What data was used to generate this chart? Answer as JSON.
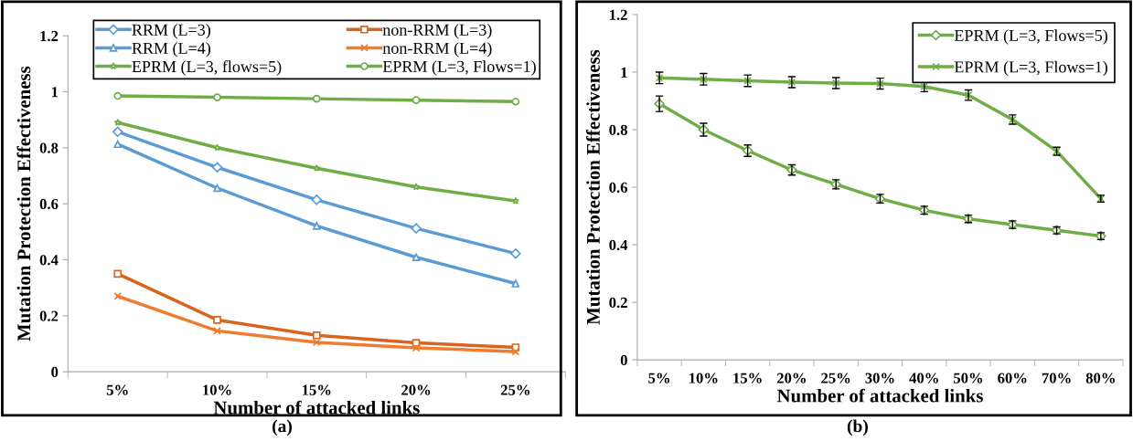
{
  "chart_data": [
    {
      "type": "line",
      "xlabel": "Number of attacked links",
      "ylabel": "Mutation Protection Effectiveness",
      "annotations": [
        "(a)"
      ],
      "categories": [
        "5%",
        "10%",
        "15%",
        "20%",
        "25%"
      ],
      "series": [
        {
          "name": "RRM (L=3)",
          "color": "#5b9bd5",
          "marker": "diamond",
          "values": [
            0.857,
            0.73,
            0.614,
            0.512,
            0.422
          ]
        },
        {
          "name": "non-RRM (L=3)",
          "color": "#d9641e",
          "marker": "square",
          "values": [
            0.35,
            0.185,
            0.13,
            0.103,
            0.087
          ]
        },
        {
          "name": "RRM (L=4)",
          "color": "#5b9bd5",
          "marker": "triangle",
          "values": [
            0.813,
            0.656,
            0.521,
            0.409,
            0.315
          ]
        },
        {
          "name": "non-RRM (L=4)",
          "color": "#ed7d31",
          "marker": "cross",
          "values": [
            0.27,
            0.146,
            0.105,
            0.085,
            0.072
          ]
        },
        {
          "name": "EPRM (L=3, flows=5)",
          "color": "#70ad47",
          "marker": "star",
          "values": [
            0.89,
            0.8,
            0.727,
            0.66,
            0.61
          ]
        },
        {
          "name": "EPRM (L=3, Flows=1)",
          "color": "#70ad47",
          "marker": "circle",
          "values": [
            0.985,
            0.98,
            0.975,
            0.97,
            0.965
          ]
        }
      ],
      "ylim": [
        0,
        1.2
      ],
      "yticks": [
        0,
        0.2,
        0.4,
        0.6,
        0.8,
        1,
        1.2
      ],
      "legend": "top",
      "grid": false
    },
    {
      "type": "line",
      "xlabel": "Number of attacked links",
      "ylabel": "Mutation Protection Effectiveness",
      "annotations": [
        "(b)"
      ],
      "categories": [
        "5%",
        "10%",
        "15%",
        "20%",
        "25%",
        "30%",
        "40%",
        "50%",
        "60%",
        "70%",
        "80%"
      ],
      "series": [
        {
          "name": "EPRM (L=3, Flows=5)",
          "color": "#70ad47",
          "marker": "diamond",
          "values": [
            0.89,
            0.8,
            0.727,
            0.66,
            0.61,
            0.56,
            0.52,
            0.49,
            0.47,
            0.45,
            0.43
          ],
          "errors": [
            0.027,
            0.022,
            0.02,
            0.018,
            0.016,
            0.015,
            0.014,
            0.013,
            0.013,
            0.012,
            0.012
          ]
        },
        {
          "name": "EPRM (L=3, Flows=1)",
          "color": "#70ad47",
          "marker": "cross",
          "values": [
            0.98,
            0.975,
            0.97,
            0.965,
            0.962,
            0.96,
            0.95,
            0.92,
            0.835,
            0.725,
            0.56
          ],
          "errors": [
            0.02,
            0.02,
            0.02,
            0.019,
            0.019,
            0.019,
            0.018,
            0.018,
            0.016,
            0.014,
            0.012
          ]
        }
      ],
      "ylim": [
        0,
        1.2
      ],
      "yticks": [
        0,
        0.2,
        0.4,
        0.6,
        0.8,
        1,
        1.2
      ],
      "legend": "top right",
      "grid": false
    }
  ]
}
